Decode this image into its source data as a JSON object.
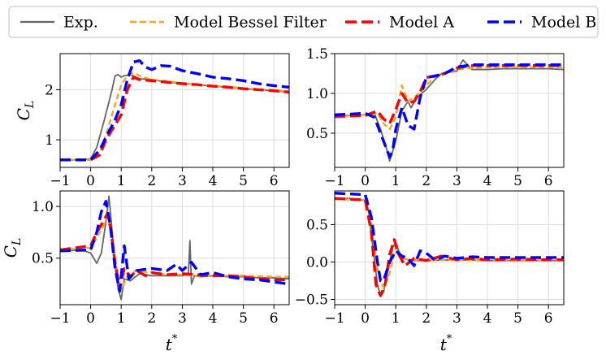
{
  "legend": {
    "items": [
      {
        "label": "Exp.",
        "color": "#666666",
        "dash": "solid"
      },
      {
        "label": "Model Bessel Filter",
        "color": "#f5a623",
        "dash": "short"
      },
      {
        "label": "Model A",
        "color": "#ff0000",
        "dash": "long"
      },
      {
        "label": "Model B",
        "color": "#0000ff",
        "dash": "long"
      }
    ]
  },
  "chart_data": [
    {
      "type": "line",
      "panel": "top-left",
      "title": "",
      "xlabel": "",
      "ylabel": "C_L",
      "xlim": [
        -1,
        6.5
      ],
      "ylim": [
        0.45,
        2.72
      ],
      "xticks": [
        -1,
        0,
        1,
        2,
        3,
        4,
        5,
        6
      ],
      "yticks": [
        1,
        2
      ],
      "ytick_labels": [
        "1",
        "2"
      ],
      "grid": true,
      "series": [
        {
          "name": "Exp.",
          "x": [
            -1,
            -0.3,
            0,
            0.2,
            0.45,
            0.7,
            0.8,
            0.9,
            1.0,
            1.1,
            1.3,
            1.6,
            2.0,
            2.5,
            3.0,
            3.5,
            4.0,
            4.5,
            5.0,
            5.5,
            6.0,
            6.5
          ],
          "y": [
            0.6,
            0.6,
            0.62,
            0.85,
            1.4,
            2.0,
            2.28,
            2.3,
            2.25,
            2.28,
            2.3,
            2.22,
            2.2,
            2.15,
            2.12,
            2.1,
            2.07,
            2.05,
            2.02,
            2.0,
            1.98,
            1.95
          ]
        },
        {
          "name": "Model Bessel Filter",
          "x": [
            -1,
            0,
            0.3,
            0.5,
            0.8,
            1.0,
            1.2,
            1.4,
            1.6,
            2.0,
            2.5,
            3.0,
            3.5,
            4.0,
            4.5,
            5.0,
            5.5,
            6.0,
            6.5
          ],
          "y": [
            0.6,
            0.6,
            0.75,
            1.1,
            1.7,
            2.1,
            2.28,
            2.34,
            2.28,
            2.2,
            2.17,
            2.13,
            2.1,
            2.08,
            2.06,
            2.03,
            2.01,
            1.99,
            1.97
          ]
        },
        {
          "name": "Model A",
          "x": [
            -1,
            0,
            0.3,
            0.5,
            0.8,
            1.0,
            1.2,
            1.4,
            1.6,
            2.0,
            2.5,
            3.0,
            3.5,
            4.0,
            4.5,
            5.0,
            5.5,
            6.0,
            6.5
          ],
          "y": [
            0.6,
            0.6,
            0.7,
            1.0,
            1.3,
            1.5,
            2.0,
            2.25,
            2.2,
            2.18,
            2.15,
            2.12,
            2.1,
            2.07,
            2.05,
            2.02,
            2.0,
            1.98,
            1.95
          ]
        },
        {
          "name": "Model B",
          "x": [
            -1,
            0,
            0.3,
            0.5,
            0.8,
            1.0,
            1.2,
            1.4,
            1.6,
            1.8,
            2.0,
            2.3,
            2.6,
            3.0,
            3.5,
            4.0,
            4.5,
            5.0,
            5.5,
            6.0,
            6.5
          ],
          "y": [
            0.6,
            0.6,
            0.8,
            1.05,
            1.4,
            1.7,
            2.2,
            2.55,
            2.58,
            2.45,
            2.4,
            2.48,
            2.47,
            2.38,
            2.32,
            2.25,
            2.22,
            2.18,
            2.12,
            2.08,
            2.05
          ]
        }
      ]
    },
    {
      "type": "line",
      "panel": "top-right",
      "title": "",
      "xlabel": "",
      "ylabel": "",
      "xlim": [
        -1,
        6.5
      ],
      "ylim": [
        0.07,
        1.5
      ],
      "xticks": [
        -1,
        0,
        1,
        2,
        3,
        4,
        5,
        6
      ],
      "yticks": [
        0.5,
        1.0,
        1.5
      ],
      "ytick_labels": [
        "0.5",
        "1.0",
        "1.5"
      ],
      "grid": true,
      "series": [
        {
          "name": "Exp.",
          "x": [
            -1,
            0,
            0.3,
            0.5,
            0.7,
            0.8,
            1.0,
            1.2,
            1.4,
            1.5,
            1.7,
            2.0,
            2.3,
            2.5,
            3.0,
            3.2,
            3.5,
            4.0,
            4.5,
            5.0,
            5.5,
            6.0,
            6.5
          ],
          "y": [
            0.72,
            0.73,
            0.75,
            0.55,
            0.3,
            0.15,
            0.4,
            0.78,
            0.9,
            0.82,
            0.95,
            1.05,
            1.18,
            1.25,
            1.28,
            1.42,
            1.3,
            1.3,
            1.31,
            1.31,
            1.31,
            1.31,
            1.3
          ]
        },
        {
          "name": "Model Bessel Filter",
          "x": [
            -1,
            0,
            0.4,
            0.6,
            0.8,
            1.0,
            1.2,
            1.4,
            1.7,
            2.0,
            2.3,
            2.6,
            3.0,
            3.5,
            4.0,
            5.0,
            6.0,
            6.5
          ],
          "y": [
            0.71,
            0.73,
            0.75,
            0.62,
            0.55,
            0.7,
            1.1,
            0.9,
            0.98,
            1.1,
            1.22,
            1.25,
            1.3,
            1.32,
            1.33,
            1.33,
            1.33,
            1.33
          ]
        },
        {
          "name": "Model A",
          "x": [
            -1,
            0,
            0.4,
            0.6,
            0.8,
            1.0,
            1.2,
            1.4,
            1.6,
            1.8,
            2.0,
            2.3,
            2.6,
            3.0,
            3.5,
            4.0,
            5.0,
            6.0,
            6.5
          ],
          "y": [
            0.71,
            0.72,
            0.78,
            0.68,
            0.62,
            0.8,
            1.0,
            0.88,
            0.9,
            1.02,
            1.2,
            1.22,
            1.25,
            1.32,
            1.35,
            1.35,
            1.35,
            1.35,
            1.35
          ]
        },
        {
          "name": "Model B",
          "x": [
            -1,
            0,
            0.3,
            0.5,
            0.7,
            0.8,
            0.9,
            1.0,
            1.2,
            1.4,
            1.6,
            1.8,
            2.0,
            2.3,
            2.6,
            3.0,
            3.5,
            4.0,
            5.0,
            6.0,
            6.5
          ],
          "y": [
            0.73,
            0.75,
            0.7,
            0.5,
            0.3,
            0.2,
            0.28,
            0.55,
            0.82,
            0.6,
            0.55,
            0.95,
            1.2,
            1.22,
            1.25,
            1.33,
            1.36,
            1.36,
            1.36,
            1.36,
            1.36
          ]
        }
      ]
    },
    {
      "type": "line",
      "panel": "bottom-left",
      "title": "",
      "xlabel": "t*",
      "ylabel": "C_L",
      "xlim": [
        -1,
        6.5
      ],
      "ylim": [
        0.05,
        1.15
      ],
      "xticks": [
        -1,
        0,
        1,
        2,
        3,
        4,
        5,
        6
      ],
      "yticks": [
        0.5,
        1.0
      ],
      "ytick_labels": [
        "0.5",
        "1.0"
      ],
      "grid": true,
      "series": [
        {
          "name": "Exp.",
          "x": [
            -1,
            -0.3,
            0,
            0.2,
            0.35,
            0.5,
            0.6,
            0.75,
            0.9,
            1.0,
            1.1,
            1.3,
            1.6,
            2.0,
            2.5,
            3.0,
            3.2,
            3.25,
            3.3,
            3.4,
            3.6,
            4.0,
            4.5,
            5.0,
            5.5,
            6.0,
            6.5
          ],
          "y": [
            0.57,
            0.58,
            0.55,
            0.45,
            0.55,
            0.85,
            1.1,
            0.6,
            0.2,
            0.1,
            0.3,
            0.28,
            0.35,
            0.33,
            0.33,
            0.33,
            0.35,
            0.67,
            0.25,
            0.33,
            0.32,
            0.33,
            0.32,
            0.32,
            0.31,
            0.31,
            0.3
          ]
        },
        {
          "name": "Model Bessel Filter",
          "x": [
            -1,
            0,
            0.2,
            0.4,
            0.55,
            0.7,
            0.85,
            1.0,
            1.2,
            1.5,
            2.0,
            2.5,
            3.0,
            3.5,
            4.0,
            5.0,
            6.0,
            6.5
          ],
          "y": [
            0.58,
            0.6,
            0.7,
            0.8,
            0.9,
            0.7,
            0.4,
            0.2,
            0.32,
            0.38,
            0.36,
            0.34,
            0.34,
            0.33,
            0.33,
            0.33,
            0.32,
            0.32
          ]
        },
        {
          "name": "Model A",
          "x": [
            -1,
            0,
            0.2,
            0.4,
            0.55,
            0.65,
            0.8,
            0.95,
            1.1,
            1.3,
            1.5,
            1.8,
            2.0,
            2.5,
            3.0,
            3.5,
            4.0,
            4.5,
            5.0,
            5.5,
            6.0,
            6.5
          ],
          "y": [
            0.58,
            0.62,
            0.75,
            0.85,
            0.93,
            0.8,
            0.45,
            0.2,
            0.4,
            0.32,
            0.38,
            0.33,
            0.36,
            0.34,
            0.35,
            0.34,
            0.33,
            0.33,
            0.32,
            0.3,
            0.29,
            0.29
          ]
        },
        {
          "name": "Model B",
          "x": [
            -1,
            0,
            0.2,
            0.35,
            0.5,
            0.65,
            0.8,
            0.95,
            1.1,
            1.25,
            1.5,
            2.0,
            2.5,
            2.8,
            3.0,
            3.3,
            3.6,
            4.0,
            4.5,
            5.0,
            5.5,
            6.0,
            6.5
          ],
          "y": [
            0.57,
            0.58,
            0.75,
            0.95,
            1.05,
            0.8,
            0.4,
            0.18,
            0.62,
            0.3,
            0.38,
            0.4,
            0.38,
            0.44,
            0.38,
            0.46,
            0.34,
            0.36,
            0.32,
            0.3,
            0.29,
            0.27,
            0.25
          ]
        }
      ]
    },
    {
      "type": "line",
      "panel": "bottom-right",
      "title": "",
      "xlabel": "t*",
      "ylabel": "",
      "xlim": [
        -1,
        6.5
      ],
      "ylim": [
        -0.57,
        0.95
      ],
      "xticks": [
        -1,
        0,
        1,
        2,
        3,
        4,
        5,
        6
      ],
      "yticks": [
        -0.5,
        0.0,
        0.5
      ],
      "ytick_labels": [
        "−0.5",
        "0.0",
        "0.5"
      ],
      "grid": true,
      "series": [
        {
          "name": "Exp.",
          "x": [
            -1,
            -0.5,
            0,
            0.1,
            0.25,
            0.4,
            0.5,
            0.6,
            0.75,
            0.9,
            1.0,
            1.2,
            1.5,
            2.0,
            3.0,
            4.0,
            5.0,
            6.0,
            6.5
          ],
          "y": [
            0.85,
            0.85,
            0.82,
            0.7,
            0.2,
            -0.3,
            -0.45,
            -0.4,
            -0.1,
            0.2,
            0.25,
            0.05,
            0.02,
            0.02,
            0.03,
            0.02,
            0.02,
            0.02,
            0.02
          ]
        },
        {
          "name": "Model Bessel Filter",
          "x": [
            -1,
            0,
            0.2,
            0.4,
            0.6,
            0.8,
            1.0,
            1.2,
            1.5,
            2.0,
            3.0,
            4.0,
            5.0,
            6.0,
            6.5
          ],
          "y": [
            0.84,
            0.83,
            0.5,
            -0.1,
            -0.35,
            -0.15,
            0.2,
            0.05,
            0.03,
            0.03,
            0.03,
            0.03,
            0.03,
            0.03,
            0.03
          ]
        },
        {
          "name": "Model A",
          "x": [
            -1,
            0,
            0.2,
            0.35,
            0.5,
            0.65,
            0.8,
            0.95,
            1.1,
            1.3,
            1.6,
            2.0,
            2.5,
            3.0,
            3.5,
            4.0,
            5.0,
            6.0,
            6.5
          ],
          "y": [
            0.85,
            0.83,
            0.4,
            -0.3,
            -0.45,
            -0.3,
            0.1,
            0.3,
            0.1,
            -0.05,
            0.05,
            0.02,
            0.08,
            0.03,
            0.05,
            0.03,
            0.04,
            0.03,
            0.03
          ]
        },
        {
          "name": "Model B",
          "x": [
            -1,
            0,
            0.2,
            0.4,
            0.5,
            0.6,
            0.8,
            1.0,
            1.2,
            1.4,
            1.6,
            1.8,
            2.0,
            2.3,
            2.6,
            3.0,
            3.5,
            4.0,
            5.0,
            6.0,
            6.5
          ],
          "y": [
            0.92,
            0.9,
            0.6,
            0.0,
            -0.25,
            -0.25,
            0.0,
            0.15,
            0.08,
            0.05,
            -0.05,
            0.15,
            0.12,
            0.02,
            0.08,
            0.05,
            0.07,
            0.06,
            0.06,
            0.06,
            0.06
          ]
        }
      ]
    }
  ]
}
